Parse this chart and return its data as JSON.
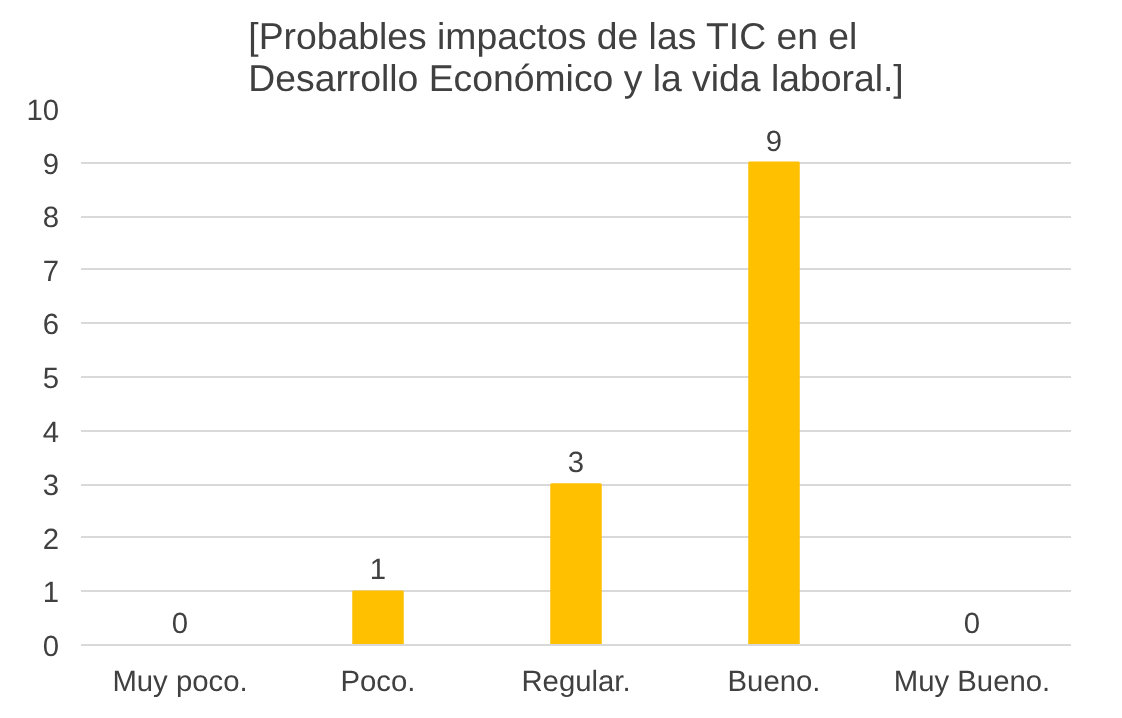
{
  "chart_data": {
    "type": "bar",
    "title": "[Probables impactos de las TIC en el Desarrollo Económico y la vida laboral.]",
    "categories": [
      "Muy poco.",
      "Poco.",
      "Regular.",
      "Bueno.",
      "Muy Bueno."
    ],
    "values": [
      0,
      1,
      3,
      9,
      0
    ],
    "color": "#ffc000",
    "ylim": [
      0,
      10
    ],
    "yticks": [
      0,
      1,
      2,
      3,
      4,
      5,
      6,
      7,
      8,
      9,
      10
    ],
    "grid": "y",
    "data_labels": true
  }
}
